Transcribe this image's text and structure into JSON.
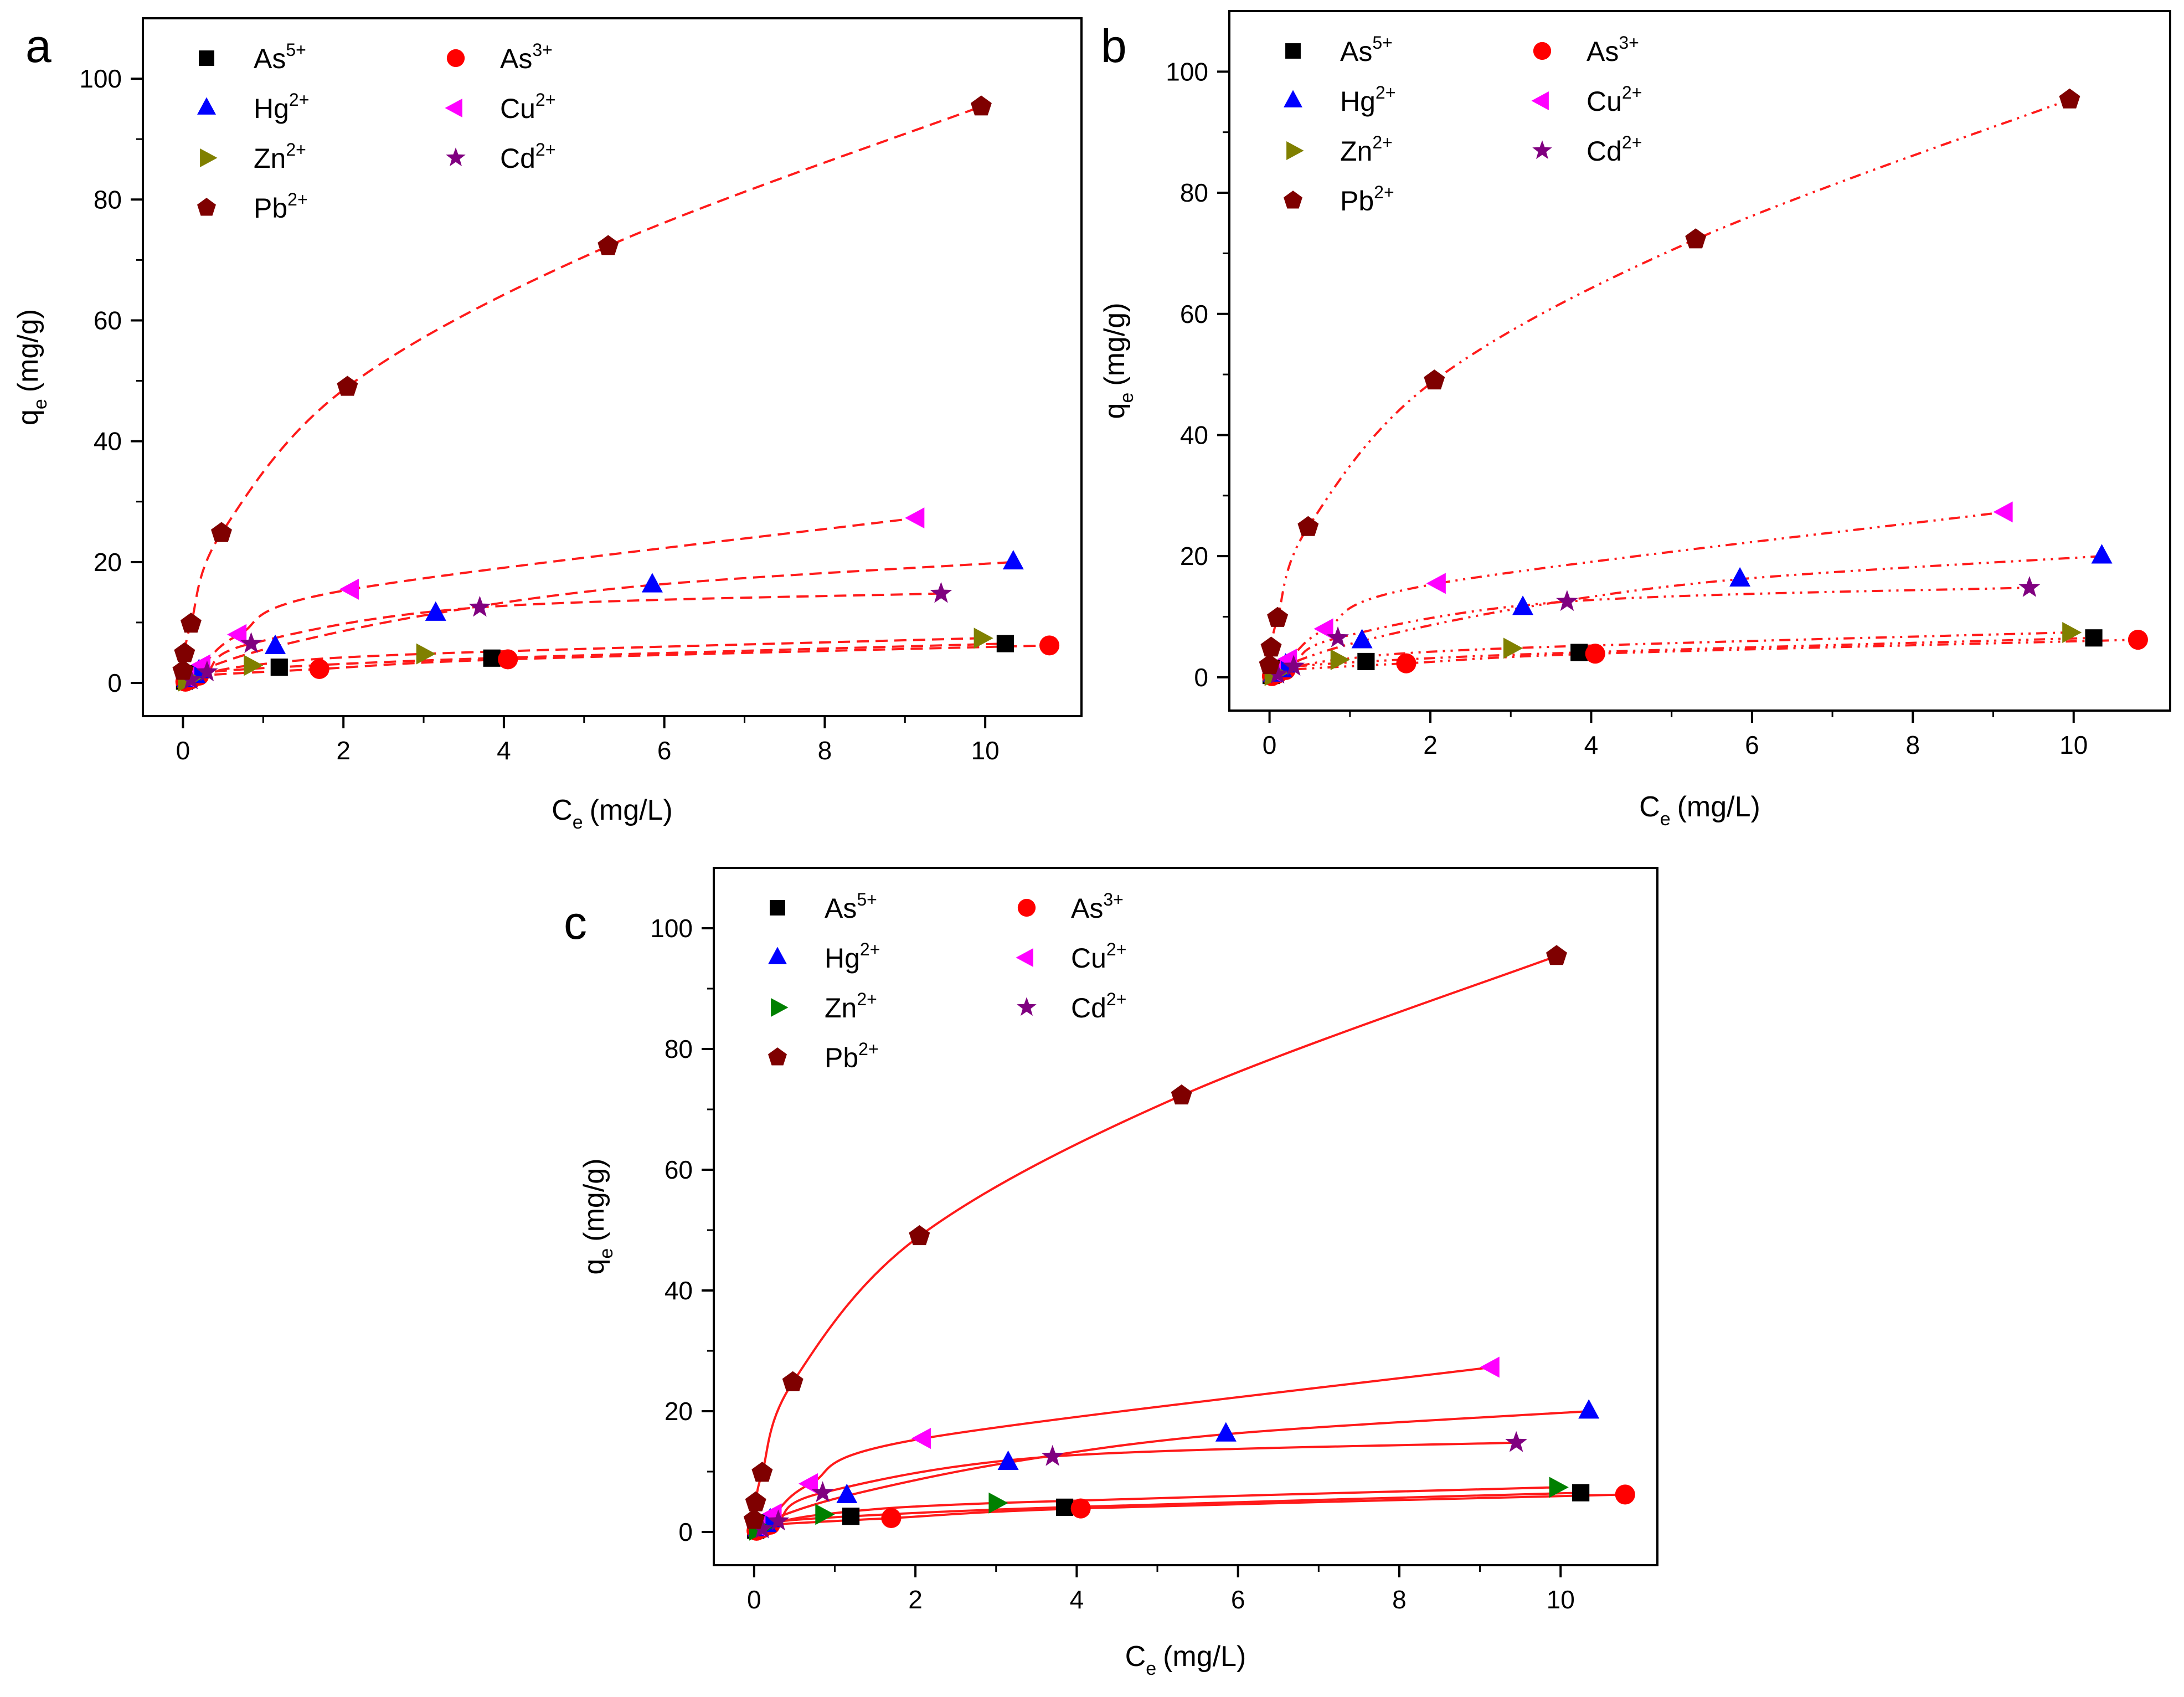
{
  "figure": {
    "description_panels": [
      "a",
      "b",
      "c"
    ]
  },
  "chart_data": [
    {
      "type": "scatter",
      "panel": "a",
      "fit_style": "dashed",
      "fit_color": "#ff1a1a",
      "xlabel": "C",
      "xlabel_sub": "e",
      "xlabel_unit": "(mg/L)",
      "ylabel": "q",
      "ylabel_sub": "e",
      "ylabel_unit": "(mg/g)",
      "xlim": [
        -0.5,
        11.2
      ],
      "ylim": [
        -5.5,
        110
      ],
      "xticks": [
        0,
        2,
        4,
        6,
        8,
        10
      ],
      "yticks": [
        0,
        20,
        40,
        60,
        80,
        100
      ],
      "legend_position": "top-left",
      "series": [
        {
          "name": "As",
          "sup": "5+",
          "marker": "square",
          "color": "#000000",
          "x": [
            0.02,
            0.05,
            0.13,
            1.2,
            3.85,
            10.25
          ],
          "y": [
            0.3,
            0.8,
            1.5,
            2.6,
            4.1,
            6.5
          ]
        },
        {
          "name": "As",
          "sup": "3+",
          "marker": "circle",
          "color": "#ff0000",
          "x": [
            0.03,
            0.1,
            0.2,
            1.7,
            4.05,
            10.8
          ],
          "y": [
            0.2,
            0.6,
            1.2,
            2.3,
            3.9,
            6.2
          ]
        },
        {
          "name": "Hg",
          "sup": "2+",
          "marker": "triangle-up",
          "color": "#0000ff",
          "x": [
            0.05,
            0.15,
            0.2,
            1.15,
            3.15,
            5.85,
            10.35
          ],
          "y": [
            0.5,
            1.2,
            2.0,
            6.0,
            11.5,
            16.2,
            20.0
          ]
        },
        {
          "name": "Cu",
          "sup": "2+",
          "marker": "triangle-left",
          "color": "#ff00ff",
          "x": [
            0.05,
            0.25,
            0.7,
            2.1,
            9.15
          ],
          "y": [
            1.0,
            3.0,
            8.0,
            15.5,
            27.3
          ]
        },
        {
          "name": "Zn",
          "sup": "2+",
          "marker": "triangle-right",
          "color": "#808000",
          "x": [
            0.03,
            0.08,
            0.85,
            3.0,
            9.95
          ],
          "y": [
            0.3,
            0.7,
            2.9,
            4.8,
            7.4
          ]
        },
        {
          "name": "Cd",
          "sup": "2+",
          "marker": "star",
          "color": "#800080",
          "x": [
            0.1,
            0.3,
            0.85,
            3.7,
            9.45
          ],
          "y": [
            0.5,
            1.8,
            6.5,
            12.5,
            14.8
          ]
        },
        {
          "name": "Pb",
          "sup": "2+",
          "marker": "pentagon",
          "color": "#7f0000",
          "x": [
            0.0,
            0.02,
            0.1,
            0.48,
            2.05,
            5.3,
            9.95
          ],
          "y": [
            2.0,
            4.9,
            9.8,
            24.8,
            49.0,
            72.3,
            95.4
          ]
        }
      ]
    },
    {
      "type": "scatter",
      "panel": "b",
      "fit_style": "dash-dot-dot",
      "fit_color": "#ff1a1a",
      "xlabel": "C",
      "xlabel_sub": "e",
      "xlabel_unit": "(mg/L)",
      "ylabel": "q",
      "ylabel_sub": "e",
      "ylabel_unit": "(mg/g)",
      "xlim": [
        -0.5,
        11.2
      ],
      "ylim": [
        -5.5,
        110
      ],
      "xticks": [
        0,
        2,
        4,
        6,
        8,
        10
      ],
      "yticks": [
        0,
        20,
        40,
        60,
        80,
        100
      ],
      "legend_position": "top-left",
      "series": [
        {
          "name": "As",
          "sup": "5+",
          "marker": "square",
          "color": "#000000",
          "x": [
            0.02,
            0.05,
            0.13,
            1.2,
            3.85,
            10.25
          ],
          "y": [
            0.3,
            0.8,
            1.5,
            2.6,
            4.1,
            6.5
          ]
        },
        {
          "name": "As",
          "sup": "3+",
          "marker": "circle",
          "color": "#ff0000",
          "x": [
            0.03,
            0.1,
            0.2,
            1.7,
            4.05,
            10.8
          ],
          "y": [
            0.2,
            0.6,
            1.2,
            2.3,
            3.9,
            6.2
          ]
        },
        {
          "name": "Hg",
          "sup": "2+",
          "marker": "triangle-up",
          "color": "#0000ff",
          "x": [
            0.05,
            0.15,
            0.2,
            1.15,
            3.15,
            5.85,
            10.35
          ],
          "y": [
            0.5,
            1.2,
            2.0,
            6.0,
            11.5,
            16.2,
            20.0
          ]
        },
        {
          "name": "Cu",
          "sup": "2+",
          "marker": "triangle-left",
          "color": "#ff00ff",
          "x": [
            0.05,
            0.25,
            0.7,
            2.1,
            9.15
          ],
          "y": [
            1.0,
            3.0,
            8.0,
            15.5,
            27.3
          ]
        },
        {
          "name": "Zn",
          "sup": "2+",
          "marker": "triangle-right",
          "color": "#808000",
          "x": [
            0.03,
            0.08,
            0.85,
            3.0,
            9.95
          ],
          "y": [
            0.3,
            0.7,
            2.9,
            4.8,
            7.4
          ]
        },
        {
          "name": "Cd",
          "sup": "2+",
          "marker": "star",
          "color": "#800080",
          "x": [
            0.1,
            0.3,
            0.85,
            3.7,
            9.45
          ],
          "y": [
            0.5,
            1.8,
            6.5,
            12.5,
            14.8
          ]
        },
        {
          "name": "Pb",
          "sup": "2+",
          "marker": "pentagon",
          "color": "#7f0000",
          "x": [
            0.0,
            0.02,
            0.1,
            0.48,
            2.05,
            5.3,
            9.95
          ],
          "y": [
            2.0,
            4.9,
            9.8,
            24.8,
            49.0,
            72.3,
            95.4
          ]
        }
      ]
    },
    {
      "type": "scatter",
      "panel": "c",
      "fit_style": "solid",
      "fit_color": "#ff1a1a",
      "xlabel": "C",
      "xlabel_sub": "e",
      "xlabel_unit": "(mg/L)",
      "ylabel": "q",
      "ylabel_sub": "e",
      "ylabel_unit": "(mg/g)",
      "xlim": [
        -0.5,
        11.2
      ],
      "ylim": [
        -5.5,
        110
      ],
      "xticks": [
        0,
        2,
        4,
        6,
        8,
        10
      ],
      "yticks": [
        0,
        20,
        40,
        60,
        80,
        100
      ],
      "legend_position": "top-left",
      "series": [
        {
          "name": "As",
          "sup": "5+",
          "marker": "square",
          "color": "#000000",
          "x": [
            0.02,
            0.05,
            0.13,
            1.2,
            3.85,
            10.25
          ],
          "y": [
            0.3,
            0.8,
            1.5,
            2.6,
            4.1,
            6.5
          ]
        },
        {
          "name": "As",
          "sup": "3+",
          "marker": "circle",
          "color": "#ff0000",
          "x": [
            0.03,
            0.1,
            0.2,
            1.7,
            4.05,
            10.8
          ],
          "y": [
            0.2,
            0.6,
            1.2,
            2.3,
            3.9,
            6.2
          ]
        },
        {
          "name": "Hg",
          "sup": "2+",
          "marker": "triangle-up",
          "color": "#0000ff",
          "x": [
            0.05,
            0.15,
            0.2,
            1.15,
            3.15,
            5.85,
            10.35
          ],
          "y": [
            0.5,
            1.2,
            2.0,
            6.0,
            11.5,
            16.2,
            20.0
          ]
        },
        {
          "name": "Cu",
          "sup": "2+",
          "marker": "triangle-left",
          "color": "#ff00ff",
          "x": [
            0.05,
            0.25,
            0.7,
            2.1,
            9.15
          ],
          "y": [
            1.0,
            3.0,
            8.0,
            15.5,
            27.3
          ]
        },
        {
          "name": "Zn",
          "sup": "2+",
          "marker": "triangle-right",
          "color": "#008000",
          "x": [
            0.03,
            0.08,
            0.85,
            3.0,
            9.95
          ],
          "y": [
            0.3,
            0.7,
            2.9,
            4.8,
            7.4
          ]
        },
        {
          "name": "Cd",
          "sup": "2+",
          "marker": "star",
          "color": "#800080",
          "x": [
            0.1,
            0.3,
            0.85,
            3.7,
            9.45
          ],
          "y": [
            0.5,
            1.8,
            6.5,
            12.5,
            14.8
          ]
        },
        {
          "name": "Pb",
          "sup": "2+",
          "marker": "pentagon",
          "color": "#7f0000",
          "x": [
            0.0,
            0.02,
            0.1,
            0.48,
            2.05,
            5.3,
            9.95
          ],
          "y": [
            2.0,
            4.9,
            9.8,
            24.8,
            49.0,
            72.3,
            95.4
          ]
        }
      ]
    }
  ]
}
